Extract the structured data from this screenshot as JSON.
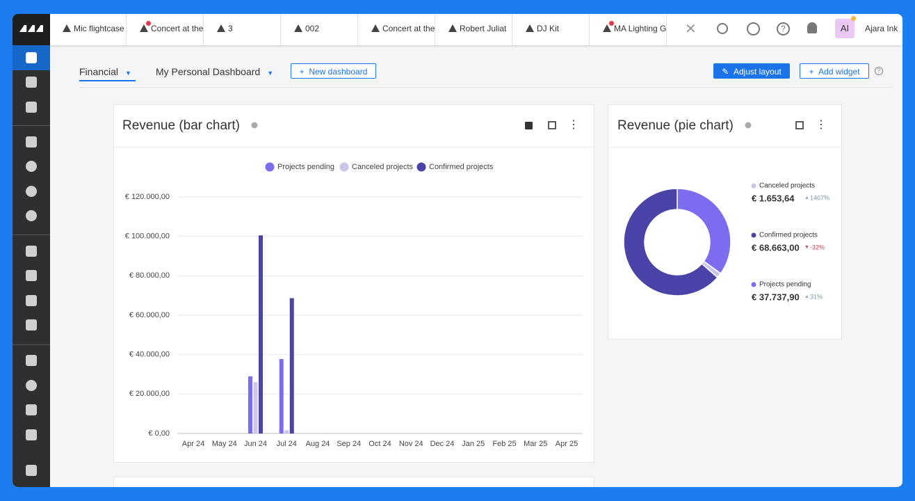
{
  "tabs": [
    "Mic flightcase",
    "Concert at the",
    "3",
    "002",
    "Concert at the",
    "Robert Juliat",
    "DJ Kit",
    "MA Lighting G"
  ],
  "user": {
    "initials": "AI",
    "name": "Ajara Ink"
  },
  "dashboard_tabs": [
    "Financial",
    "My Personal Dashboard"
  ],
  "buttons": {
    "new_dashboard": "New dashboard",
    "adjust_layout": "Adjust layout",
    "add_widget": "Add widget"
  },
  "chart_data": [
    {
      "type": "bar",
      "title": "Revenue (bar chart)",
      "categories": [
        "Apr 24",
        "May 24",
        "Jun 24",
        "Jul 24",
        "Aug 24",
        "Sep 24",
        "Oct 24",
        "Nov 24",
        "Dec 24",
        "Jan 25",
        "Feb 25",
        "Mar 25",
        "Apr 25"
      ],
      "series": [
        {
          "name": "Projects pending",
          "color": "#7b6cf0",
          "values": [
            0,
            0,
            29000,
            37737.9,
            0,
            0,
            0,
            0,
            0,
            0,
            0,
            0,
            0
          ]
        },
        {
          "name": "Canceled projects",
          "color": "#c9c6ea",
          "values": [
            0,
            0,
            26000,
            1653.64,
            0,
            0,
            0,
            0,
            0,
            0,
            0,
            0,
            0
          ]
        },
        {
          "name": "Confirmed projects",
          "color": "#4a43a8",
          "values": [
            0,
            0,
            100500,
            68663,
            0,
            0,
            0,
            0,
            0,
            0,
            0,
            0,
            0
          ]
        }
      ],
      "ylim": [
        0,
        120000
      ],
      "yticks": [
        {
          "value": 0,
          "label": "€ 0,00"
        },
        {
          "value": 20000,
          "label": "€ 20.000,00"
        },
        {
          "value": 40000,
          "label": "€ 40.000,00"
        },
        {
          "value": 60000,
          "label": "€ 60.000,00"
        },
        {
          "value": 80000,
          "label": "€ 80.000,00"
        },
        {
          "value": 100000,
          "label": "€ 100.000,00"
        },
        {
          "value": 120000,
          "label": "€ 120.000,00"
        }
      ],
      "grid": true
    },
    {
      "type": "pie",
      "title": "Revenue (pie chart)",
      "categories": [
        "Canceled projects",
        "Confirmed projects",
        "Projects pending"
      ],
      "values": [
        1653.64,
        68663,
        37737.9
      ],
      "value_labels": [
        "€ 1.653,64",
        "€ 68.663,00",
        "€ 37.737,90"
      ],
      "changes": [
        "1467%",
        "-32%",
        "31%"
      ],
      "colors": [
        "#c9c6ea",
        "#4a43a8",
        "#7b6cf0"
      ]
    }
  ]
}
